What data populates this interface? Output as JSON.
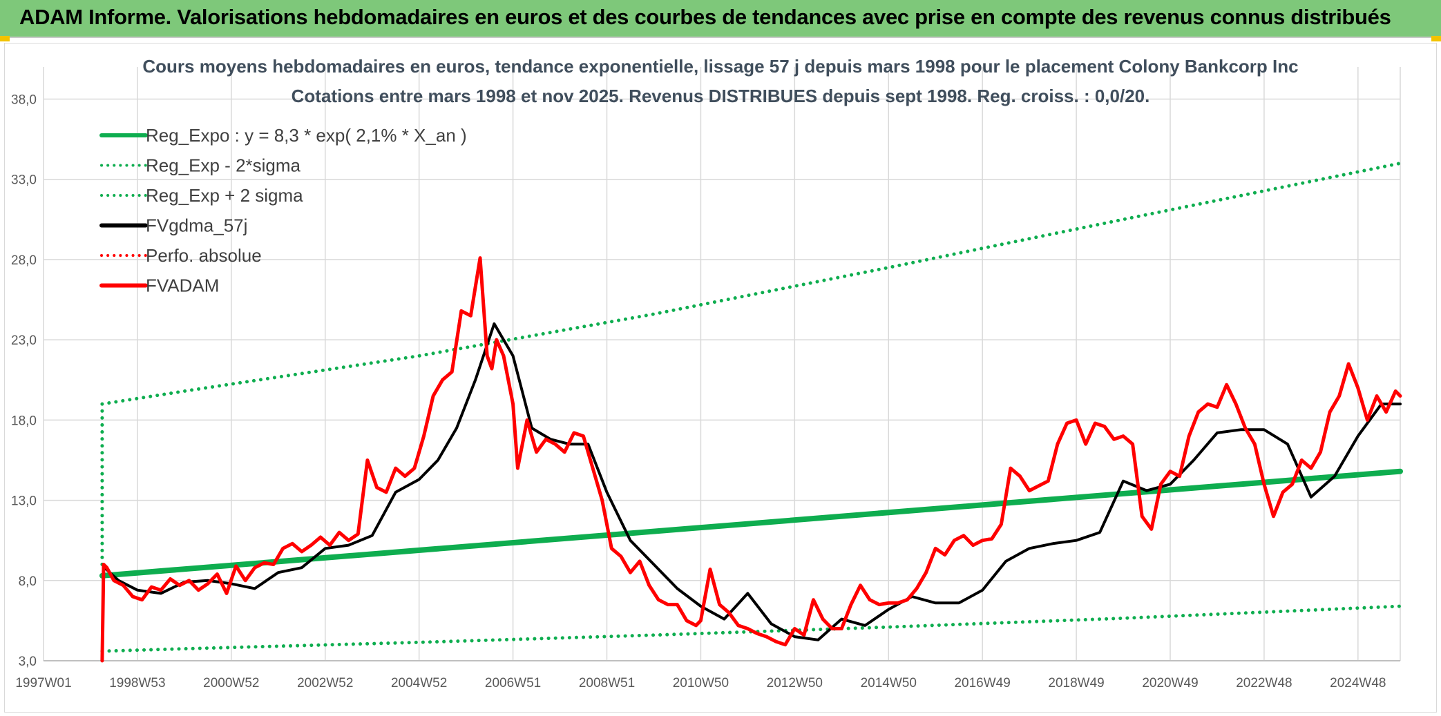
{
  "header": {
    "banner_title": "ADAM Informe. Valorisations hebdomadaires en euros et des courbes de tendances avec prise en compte des revenus connus distribués"
  },
  "colors": {
    "banner_bg": "#7ec87a",
    "green": "#0ead4f",
    "black": "#000000",
    "red": "#ff0000",
    "grid": "#d9d9d9"
  },
  "chart_data": {
    "type": "line",
    "title": "Cours moyens hebdomadaires en euros, tendance exponentielle, lissage 57 j depuis mars 1998 pour le placement Colony Bankcorp Inc",
    "subtitle": "Cotations entre mars 1998 et nov 2025. Revenus DISTRIBUES depuis sept 1998. Reg. croiss. : 0,0/20.",
    "xlabel": "",
    "ylabel": "",
    "xlim": [
      1997.0,
      2025.9
    ],
    "ylim": [
      3.0,
      40.0
    ],
    "y_ticks": [
      3.0,
      8.0,
      13.0,
      18.0,
      23.0,
      28.0,
      33.0,
      38.0
    ],
    "y_tick_labels": [
      "3,0",
      "8,0",
      "13,0",
      "18,0",
      "23,0",
      "28,0",
      "33,0",
      "38,0"
    ],
    "x_ticks": [
      {
        "label": "1997W01",
        "x": 1997.0
      },
      {
        "label": "1998W53",
        "x": 1999.0
      },
      {
        "label": "2000W52",
        "x": 2001.0
      },
      {
        "label": "2002W52",
        "x": 2003.0
      },
      {
        "label": "2004W52",
        "x": 2005.0
      },
      {
        "label": "2006W51",
        "x": 2007.0
      },
      {
        "label": "2008W51",
        "x": 2009.0
      },
      {
        "label": "2010W50",
        "x": 2011.0
      },
      {
        "label": "2012W50",
        "x": 2013.0
      },
      {
        "label": "2014W50",
        "x": 2015.0
      },
      {
        "label": "2016W49",
        "x": 2017.0
      },
      {
        "label": "2018W49",
        "x": 2019.0
      },
      {
        "label": "2020W49",
        "x": 2021.0
      },
      {
        "label": "2022W48",
        "x": 2023.0
      },
      {
        "label": "2024W48",
        "x": 2025.0
      }
    ],
    "grid": true,
    "legend_position": "top-left",
    "series": [
      {
        "name": "Reg_Expo : y = 8,3 * exp( 2,1% *  X_an )",
        "color": "#0ead4f",
        "style": "solid",
        "width": 8,
        "x": [
          1998.25,
          2025.9
        ],
        "y": [
          8.3,
          14.8
        ]
      },
      {
        "name": "Reg_Exp - 2*sigma",
        "color": "#0ead4f",
        "style": "dotted",
        "width": 5,
        "x": [
          1998.25,
          2000,
          2005,
          2010,
          2015,
          2020,
          2025.9
        ],
        "y": [
          3.6,
          3.75,
          4.15,
          4.6,
          5.1,
          5.65,
          6.4
        ]
      },
      {
        "name": "Reg_Exp + 2 sigma",
        "color": "#0ead4f",
        "style": "dotted",
        "width": 5,
        "x": [
          1998.25,
          1998.25,
          2000,
          2005,
          2010,
          2015,
          2020,
          2025.9
        ],
        "y": [
          9.0,
          19.0,
          19.8,
          22.0,
          24.6,
          27.5,
          30.5,
          34.0
        ]
      },
      {
        "name": "FVgdma_57j",
        "color": "#000000",
        "style": "solid",
        "width": 4,
        "x": [
          1998.3,
          1998.6,
          1999.0,
          1999.5,
          2000.0,
          2000.5,
          2001.0,
          2001.5,
          2002.0,
          2002.5,
          2003.0,
          2003.5,
          2004.0,
          2004.5,
          2005.0,
          2005.4,
          2005.8,
          2006.2,
          2006.6,
          2007.0,
          2007.4,
          2007.8,
          2008.2,
          2008.6,
          2009.0,
          2009.5,
          2010.0,
          2010.5,
          2011.0,
          2011.5,
          2012.0,
          2012.5,
          2013.0,
          2013.5,
          2014.0,
          2014.5,
          2015.0,
          2015.5,
          2016.0,
          2016.5,
          2017.0,
          2017.5,
          2018.0,
          2018.5,
          2019.0,
          2019.5,
          2020.0,
          2020.5,
          2021.0,
          2021.5,
          2022.0,
          2022.5,
          2023.0,
          2023.5,
          2024.0,
          2024.5,
          2025.0,
          2025.5,
          2025.9
        ],
        "y": [
          8.8,
          8.0,
          7.4,
          7.2,
          7.9,
          8.0,
          7.8,
          7.5,
          8.5,
          8.8,
          10.0,
          10.2,
          10.8,
          13.5,
          14.3,
          15.5,
          17.5,
          20.5,
          24.0,
          22.0,
          17.5,
          16.8,
          16.5,
          16.5,
          13.5,
          10.5,
          9.0,
          7.5,
          6.4,
          5.6,
          7.2,
          5.3,
          4.5,
          4.3,
          5.6,
          5.2,
          6.2,
          7.0,
          6.6,
          6.6,
          7.4,
          9.2,
          10.0,
          10.3,
          10.5,
          11.0,
          14.2,
          13.6,
          14.0,
          15.5,
          17.2,
          17.4,
          17.4,
          16.5,
          13.2,
          14.5,
          17.0,
          19.0,
          19.0
        ]
      },
      {
        "name": "Perfo. absolue",
        "color": "#ff0000",
        "style": "dotted",
        "width": 3,
        "x": [],
        "y": []
      },
      {
        "name": "FVADAM",
        "color": "#ff0000",
        "style": "solid",
        "width": 5,
        "x": [
          1998.25,
          1998.28,
          1998.35,
          1998.5,
          1998.7,
          1998.9,
          1999.1,
          1999.3,
          1999.5,
          1999.7,
          1999.9,
          2000.1,
          2000.3,
          2000.5,
          2000.7,
          2000.9,
          2001.1,
          2001.3,
          2001.5,
          2001.7,
          2001.9,
          2002.1,
          2002.3,
          2002.5,
          2002.7,
          2002.9,
          2003.1,
          2003.3,
          2003.5,
          2003.7,
          2003.9,
          2004.1,
          2004.3,
          2004.5,
          2004.7,
          2004.9,
          2005.1,
          2005.3,
          2005.5,
          2005.7,
          2005.9,
          2006.1,
          2006.3,
          2006.45,
          2006.55,
          2006.65,
          2006.8,
          2007.0,
          2007.1,
          2007.3,
          2007.5,
          2007.7,
          2007.9,
          2008.1,
          2008.3,
          2008.5,
          2008.7,
          2008.9,
          2009.1,
          2009.3,
          2009.5,
          2009.7,
          2009.9,
          2010.1,
          2010.3,
          2010.5,
          2010.7,
          2010.9,
          2011.0,
          2011.2,
          2011.4,
          2011.6,
          2011.8,
          2012.0,
          2012.2,
          2012.4,
          2012.6,
          2012.8,
          2013.0,
          2013.2,
          2013.4,
          2013.6,
          2013.8,
          2014.0,
          2014.2,
          2014.4,
          2014.6,
          2014.8,
          2015.0,
          2015.2,
          2015.4,
          2015.6,
          2015.8,
          2016.0,
          2016.2,
          2016.4,
          2016.6,
          2016.8,
          2017.0,
          2017.2,
          2017.4,
          2017.6,
          2017.8,
          2018.0,
          2018.2,
          2018.4,
          2018.6,
          2018.8,
          2019.0,
          2019.2,
          2019.4,
          2019.6,
          2019.8,
          2020.0,
          2020.2,
          2020.4,
          2020.6,
          2020.8,
          2021.0,
          2021.2,
          2021.4,
          2021.6,
          2021.8,
          2022.0,
          2022.2,
          2022.4,
          2022.6,
          2022.8,
          2023.0,
          2023.2,
          2023.4,
          2023.6,
          2023.8,
          2024.0,
          2024.2,
          2024.4,
          2024.6,
          2024.8,
          2025.0,
          2025.2,
          2025.4,
          2025.6,
          2025.8,
          2025.9
        ],
        "y": [
          3.0,
          9.0,
          8.8,
          8.0,
          7.7,
          7.0,
          6.8,
          7.6,
          7.4,
          8.1,
          7.7,
          8.0,
          7.4,
          7.8,
          8.4,
          7.2,
          8.9,
          8.0,
          8.8,
          9.1,
          9.0,
          10.0,
          10.3,
          9.8,
          10.2,
          10.7,
          10.2,
          11.0,
          10.5,
          10.9,
          15.5,
          13.8,
          13.5,
          15.0,
          14.5,
          15.0,
          17.0,
          19.5,
          20.5,
          21.0,
          24.8,
          24.5,
          28.1,
          22.0,
          21.2,
          23.0,
          22.0,
          19.0,
          15.0,
          18.0,
          16.0,
          16.8,
          16.5,
          16.0,
          17.2,
          17.0,
          15.0,
          13.0,
          10.0,
          9.5,
          8.5,
          9.2,
          7.7,
          6.8,
          6.5,
          6.5,
          5.5,
          5.2,
          5.5,
          8.7,
          6.5,
          6.0,
          5.2,
          5.0,
          4.7,
          4.5,
          4.2,
          4.0,
          5.0,
          4.6,
          6.8,
          5.6,
          5.0,
          5.0,
          6.5,
          7.7,
          6.8,
          6.5,
          6.6,
          6.6,
          6.8,
          7.5,
          8.5,
          10.0,
          9.6,
          10.5,
          10.8,
          10.2,
          10.5,
          10.6,
          11.5,
          15.0,
          14.5,
          13.6,
          13.9,
          14.2,
          16.5,
          17.8,
          18.0,
          16.5,
          17.8,
          17.6,
          16.8,
          17.0,
          16.5,
          12.0,
          11.2,
          14.0,
          14.8,
          14.5,
          17.0,
          18.5,
          19.0,
          18.8,
          20.2,
          19.0,
          17.5,
          16.5,
          14.0,
          12.0,
          13.5,
          14.0,
          15.5,
          15.0,
          16.0,
          18.5,
          19.5,
          21.5,
          20.0,
          18.0,
          19.5,
          18.5,
          19.8,
          19.5
        ]
      }
    ]
  }
}
